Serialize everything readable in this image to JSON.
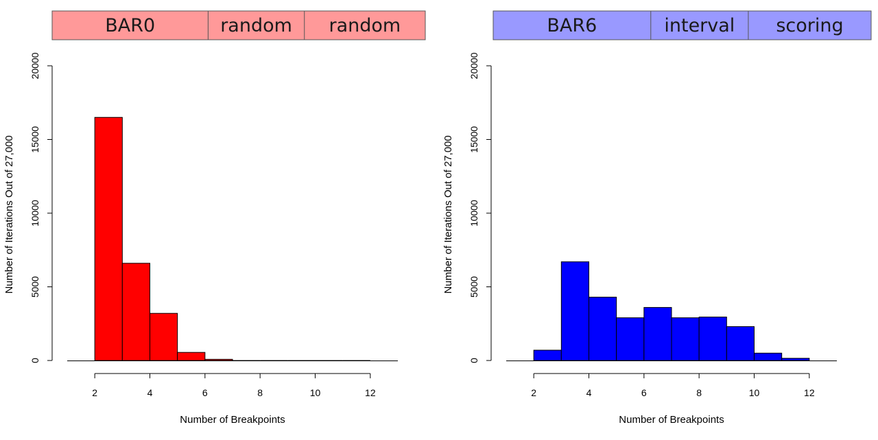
{
  "chart_data": [
    {
      "type": "bar",
      "header": {
        "labels": [
          "BAR0",
          "random",
          "random"
        ],
        "color": "#ff9999"
      },
      "bar_color": "#ff0000",
      "xlabel": "Number of Breakpoints",
      "ylabel": "Number of Iterations Out of 27,000",
      "xlim": [
        1,
        13
      ],
      "ylim": [
        0,
        20000
      ],
      "x_ticks": [
        2,
        4,
        6,
        8,
        10,
        12
      ],
      "y_ticks": [
        0,
        5000,
        10000,
        15000,
        20000
      ],
      "bins": [
        {
          "x0": 2,
          "x1": 3,
          "value": 16500
        },
        {
          "x0": 3,
          "x1": 4,
          "value": 6600
        },
        {
          "x0": 4,
          "x1": 5,
          "value": 3200
        },
        {
          "x0": 5,
          "x1": 6,
          "value": 550
        },
        {
          "x0": 6,
          "x1": 7,
          "value": 80
        },
        {
          "x0": 7,
          "x1": 8,
          "value": 10
        },
        {
          "x0": 8,
          "x1": 9,
          "value": 0
        },
        {
          "x0": 9,
          "x1": 10,
          "value": 0
        },
        {
          "x0": 10,
          "x1": 11,
          "value": 0
        },
        {
          "x0": 11,
          "x1": 12,
          "value": 0
        }
      ]
    },
    {
      "type": "bar",
      "header": {
        "labels": [
          "BAR6",
          "interval",
          "scoring"
        ],
        "color": "#9999ff"
      },
      "bar_color": "#0000ff",
      "xlabel": "Number of Breakpoints",
      "ylabel": "Number of Iterations Out of 27,000",
      "xlim": [
        1,
        13
      ],
      "ylim": [
        0,
        20000
      ],
      "x_ticks": [
        2,
        4,
        6,
        8,
        10,
        12
      ],
      "y_ticks": [
        0,
        5000,
        10000,
        15000,
        20000
      ],
      "bins": [
        {
          "x0": 2,
          "x1": 3,
          "value": 700
        },
        {
          "x0": 3,
          "x1": 4,
          "value": 6700
        },
        {
          "x0": 4,
          "x1": 5,
          "value": 4300
        },
        {
          "x0": 5,
          "x1": 6,
          "value": 2900
        },
        {
          "x0": 6,
          "x1": 7,
          "value": 3600
        },
        {
          "x0": 7,
          "x1": 8,
          "value": 2900
        },
        {
          "x0": 8,
          "x1": 9,
          "value": 2950
        },
        {
          "x0": 9,
          "x1": 10,
          "value": 2300
        },
        {
          "x0": 10,
          "x1": 11,
          "value": 500
        },
        {
          "x0": 11,
          "x1": 12,
          "value": 150
        }
      ]
    }
  ]
}
